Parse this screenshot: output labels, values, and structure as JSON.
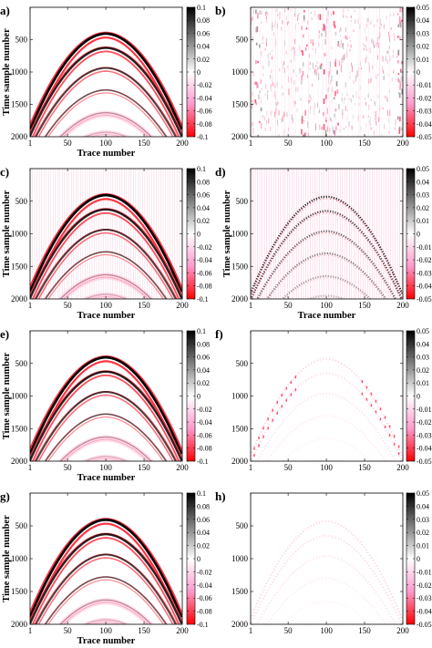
{
  "figure": {
    "panels": [
      {
        "label": "a)",
        "kind": "seismic",
        "style": "full",
        "colorbar": "cb_strong",
        "show_xlabel": true,
        "show_ylabel": true
      },
      {
        "label": "b)",
        "kind": "noise",
        "style": "noise",
        "colorbar": "cb_weak",
        "show_xlabel": false,
        "show_ylabel": false
      },
      {
        "label": "c)",
        "kind": "seismic",
        "style": "full_traces",
        "colorbar": "cb_strong",
        "show_xlabel": true,
        "show_ylabel": true
      },
      {
        "label": "d)",
        "kind": "seismic",
        "style": "dotted",
        "colorbar": "cb_weak",
        "show_xlabel": true,
        "show_ylabel": true
      },
      {
        "label": "e)",
        "kind": "seismic",
        "style": "full",
        "colorbar": "cb_strong",
        "show_xlabel": true,
        "show_ylabel": true
      },
      {
        "label": "f)",
        "kind": "seismic",
        "style": "faint",
        "colorbar": "cb_weak",
        "show_xlabel": false,
        "show_ylabel": false
      },
      {
        "label": "g)",
        "kind": "seismic",
        "style": "full",
        "colorbar": "cb_strong",
        "show_xlabel": true,
        "show_ylabel": true
      },
      {
        "label": "h)",
        "kind": "seismic",
        "style": "faint",
        "colorbar": "cb_weak",
        "show_xlabel": false,
        "show_ylabel": false
      }
    ],
    "x_ticks": [
      "1",
      "50",
      "100",
      "150",
      "200"
    ],
    "y_ticks": [
      "500",
      "1000",
      "1500",
      "2000"
    ],
    "xlabel": "Trace number",
    "ylabel": "Time sample number",
    "colorbars": {
      "cb_strong": [
        "0.1",
        "0.08",
        "0.06",
        "0.04",
        "0.02",
        "0",
        "-0.02",
        "-0.04",
        "-0.06",
        "-0.08",
        "-0.1"
      ],
      "cb_weak": [
        "0.05",
        "0.04",
        "0.03",
        "0.02",
        "0.01",
        "0",
        "-0.01",
        "-0.02",
        "-0.03",
        "-0.04",
        "-0.05"
      ]
    },
    "colormap": {
      "positive": "#000000",
      "zero": "#ffffff",
      "mid_negative": "#ff99cc",
      "negative": "#ff0000"
    }
  },
  "chart_data": [
    {
      "type": "heatmap",
      "panel": "a)",
      "x_range": [
        1,
        200
      ],
      "y_range": [
        0,
        2000
      ],
      "y_inverted": true,
      "colorbar_range": [
        -0.1,
        0.1
      ],
      "event_apex_times": [
        430,
        650,
        960,
        1300,
        1650,
        1950
      ],
      "event_apex_trace": 100
    },
    {
      "type": "heatmap",
      "panel": "b)",
      "x_range": [
        1,
        200
      ],
      "y_range": [
        0,
        2000
      ],
      "y_inverted": true,
      "colorbar_range": [
        -0.05,
        0.05
      ]
    },
    {
      "type": "heatmap",
      "panel": "c)",
      "x_range": [
        1,
        200
      ],
      "y_range": [
        0,
        2000
      ],
      "y_inverted": true,
      "colorbar_range": [
        -0.1,
        0.1
      ],
      "event_apex_times": [
        430,
        650,
        960,
        1300,
        1650,
        1950
      ],
      "event_apex_trace": 100
    },
    {
      "type": "heatmap",
      "panel": "d)",
      "x_range": [
        1,
        200
      ],
      "y_range": [
        0,
        2000
      ],
      "y_inverted": true,
      "colorbar_range": [
        -0.05,
        0.05
      ],
      "event_apex_times": [
        430,
        650,
        960,
        1300,
        1650,
        1950
      ],
      "event_apex_trace": 100
    },
    {
      "type": "heatmap",
      "panel": "e)",
      "x_range": [
        1,
        200
      ],
      "y_range": [
        0,
        2000
      ],
      "y_inverted": true,
      "colorbar_range": [
        -0.1,
        0.1
      ],
      "event_apex_times": [
        430,
        650,
        960,
        1300,
        1650,
        1950
      ],
      "event_apex_trace": 100
    },
    {
      "type": "heatmap",
      "panel": "f)",
      "x_range": [
        1,
        200
      ],
      "y_range": [
        0,
        2000
      ],
      "y_inverted": true,
      "colorbar_range": [
        -0.05,
        0.05
      ],
      "event_apex_times": [
        430,
        650,
        960,
        1300,
        1650,
        1950
      ],
      "event_apex_trace": 100
    },
    {
      "type": "heatmap",
      "panel": "g)",
      "x_range": [
        1,
        200
      ],
      "y_range": [
        0,
        2000
      ],
      "y_inverted": true,
      "colorbar_range": [
        -0.1,
        0.1
      ],
      "event_apex_times": [
        430,
        650,
        960,
        1300,
        1650,
        1950
      ],
      "event_apex_trace": 100
    },
    {
      "type": "heatmap",
      "panel": "h)",
      "x_range": [
        1,
        200
      ],
      "y_range": [
        0,
        2000
      ],
      "y_inverted": true,
      "colorbar_range": [
        -0.05,
        0.05
      ],
      "event_apex_times": [
        430,
        650,
        960,
        1300,
        1650,
        1950
      ],
      "event_apex_trace": 100
    }
  ]
}
